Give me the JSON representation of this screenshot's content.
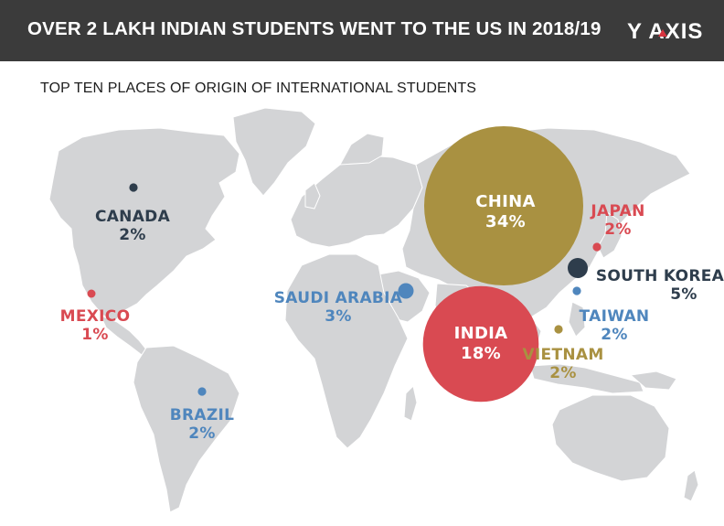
{
  "header": {
    "title": "OVER 2 LAKH INDIAN STUDENTS WENT TO THE US IN 2018/19",
    "logo": "Y AXIS"
  },
  "subtitle": "TOP TEN PLACES OF ORIGIN OF INTERNATIONAL STUDENTS",
  "colors": {
    "header_bg": "#3b3b3b",
    "land": "#d3d4d6",
    "china": "#a99141",
    "india": "#d94a52",
    "south_korea": "#2e3d4c",
    "canada": "#2e3d4c",
    "mexico": "#d94a52",
    "japan": "#d94a52",
    "brazil": "#4f86bd",
    "saudi_arabia": "#4f86bd",
    "taiwan": "#4f86bd",
    "vietnam": "#a99141"
  },
  "chart_data": {
    "type": "bubble-map",
    "unit": "%",
    "points": [
      {
        "country": "CHINA",
        "value": 34
      },
      {
        "country": "INDIA",
        "value": 18
      },
      {
        "country": "SOUTH KOREA",
        "value": 5
      },
      {
        "country": "SAUDI ARABIA",
        "value": 3
      },
      {
        "country": "CANADA",
        "value": 2
      },
      {
        "country": "JAPAN",
        "value": 2
      },
      {
        "country": "BRAZIL",
        "value": 2
      },
      {
        "country": "TAIWAN",
        "value": 2
      },
      {
        "country": "VIETNAM",
        "value": 2
      },
      {
        "country": "MEXICO",
        "value": 1
      }
    ]
  },
  "labels": {
    "china": {
      "name": "CHINA",
      "value": "34%"
    },
    "india": {
      "name": "INDIA",
      "value": "18%"
    },
    "south_korea": {
      "name": "SOUTH KOREA",
      "value": "5%"
    },
    "saudi_arabia": {
      "name": "SAUDI ARABIA",
      "value": "3%"
    },
    "canada": {
      "name": "CANADA",
      "value": "2%"
    },
    "japan": {
      "name": "JAPAN",
      "value": "2%"
    },
    "brazil": {
      "name": "BRAZIL",
      "value": "2%"
    },
    "taiwan": {
      "name": "TAIWAN",
      "value": "2%"
    },
    "vietnam": {
      "name": "VIETNAM",
      "value": "2%"
    },
    "mexico": {
      "name": "MEXICO",
      "value": "1%"
    }
  }
}
